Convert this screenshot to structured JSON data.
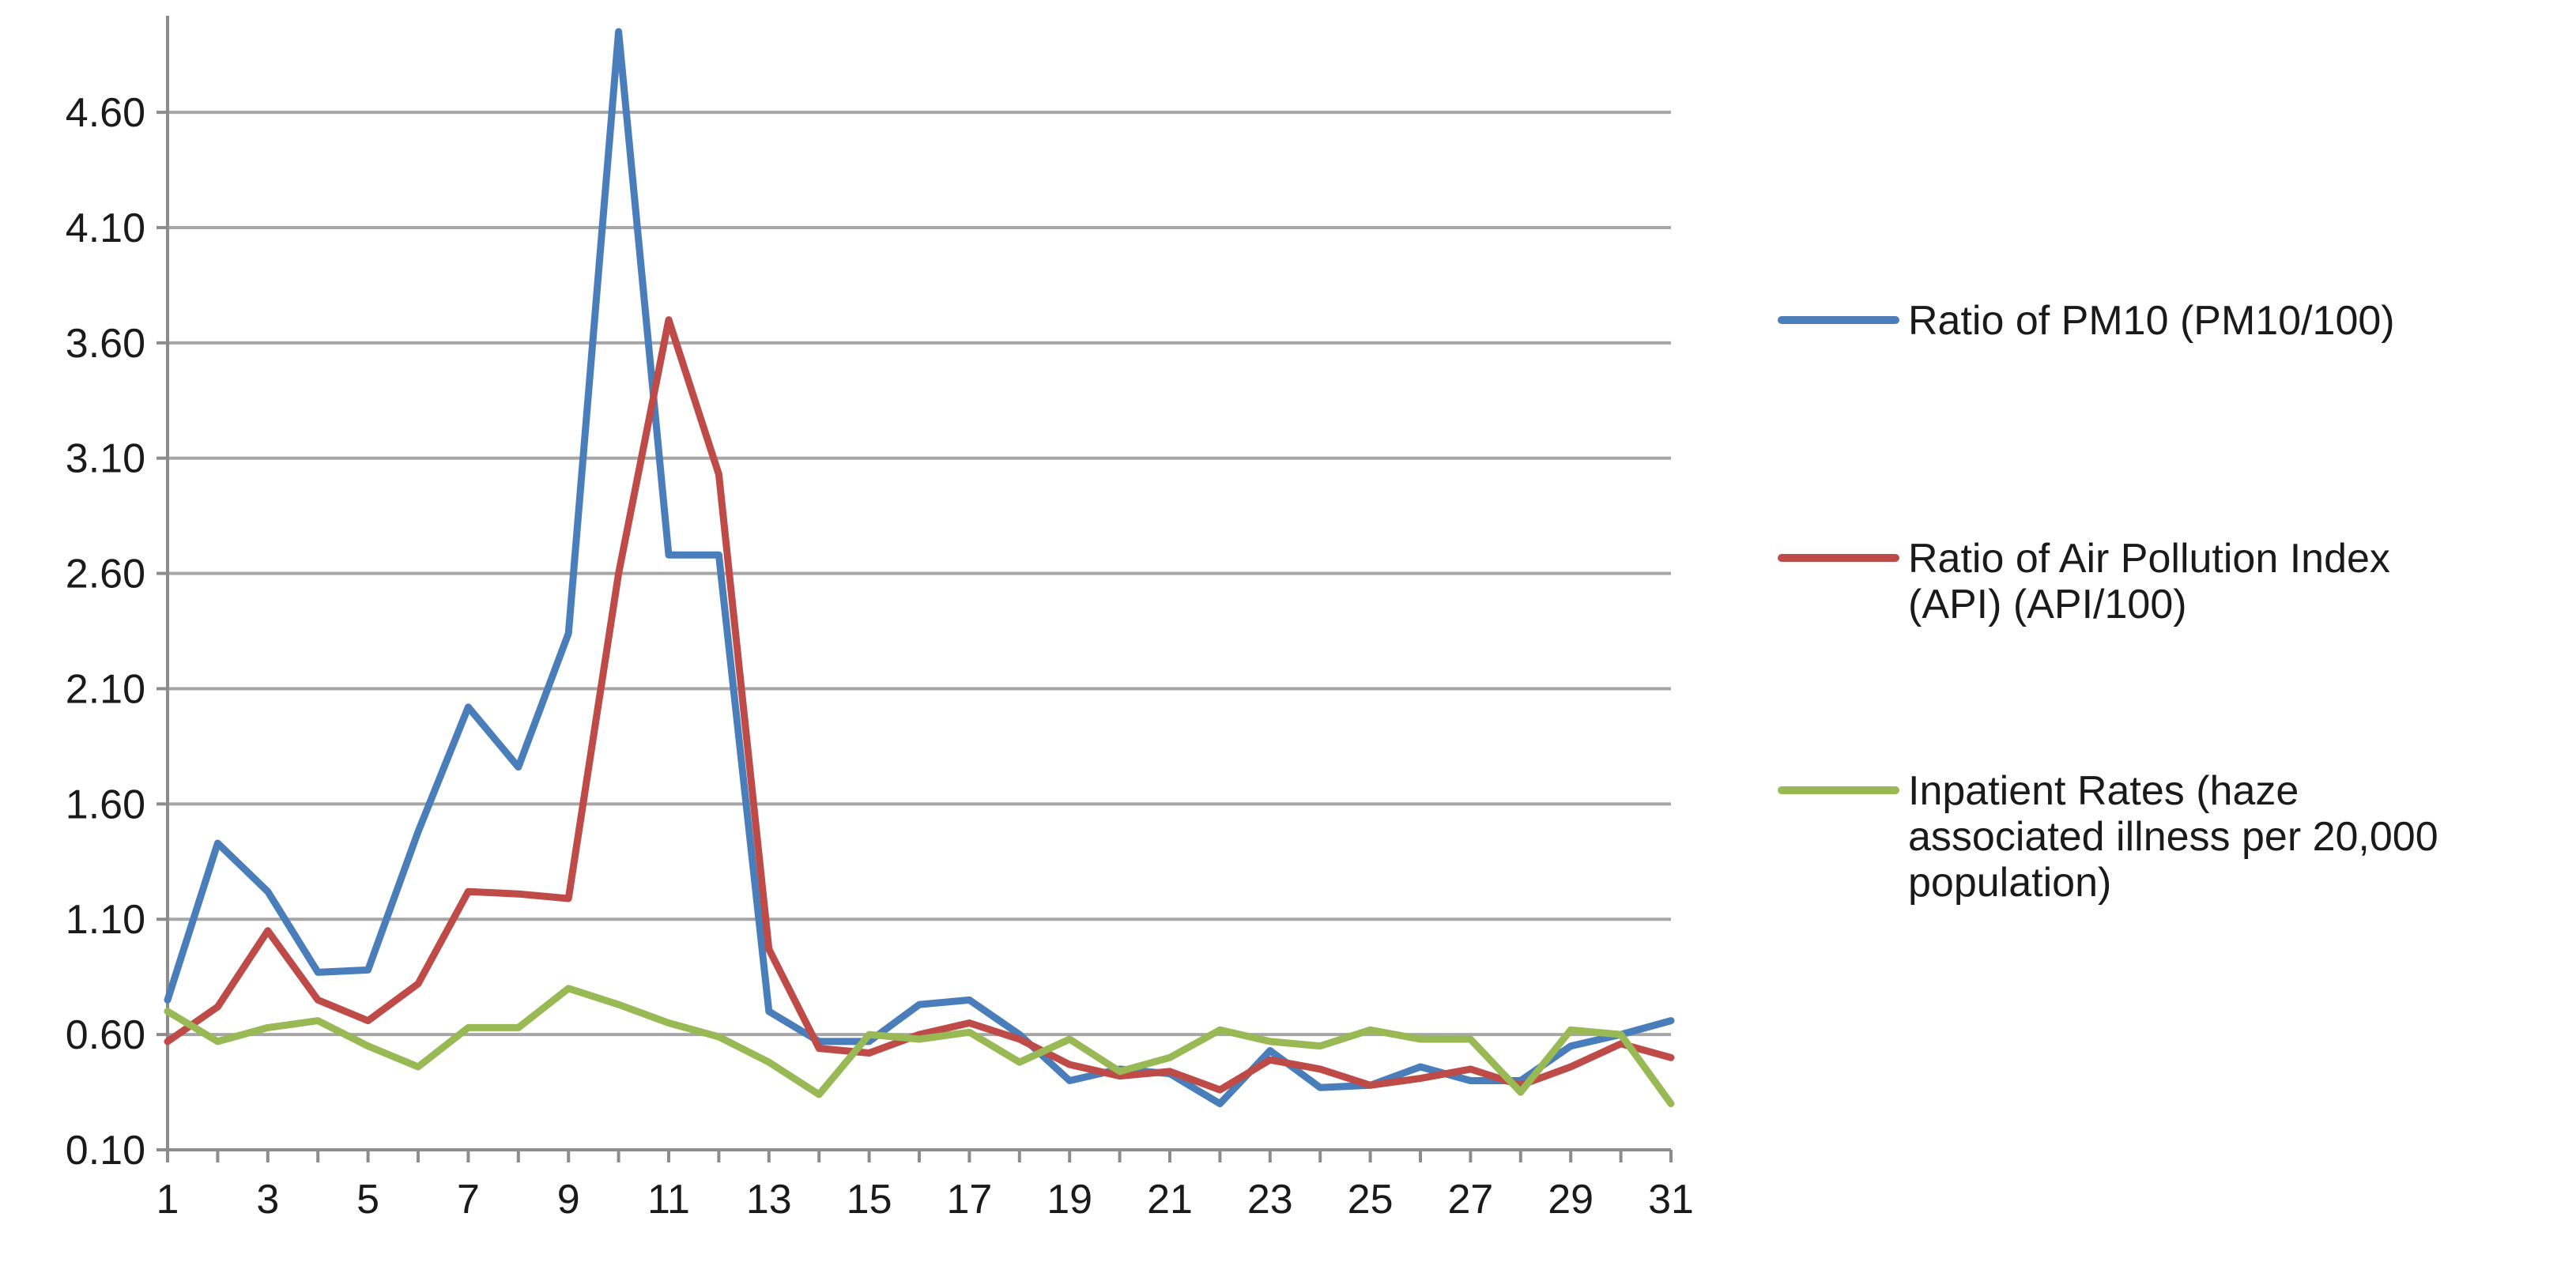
{
  "chart_data": {
    "type": "line",
    "title": "",
    "xlabel": "",
    "ylabel": "",
    "x": [
      1,
      2,
      3,
      4,
      5,
      6,
      7,
      8,
      9,
      10,
      11,
      12,
      13,
      14,
      15,
      16,
      17,
      18,
      19,
      20,
      21,
      22,
      23,
      24,
      25,
      26,
      27,
      28,
      29,
      30,
      31
    ],
    "x_tick_labels": [
      "1",
      "3",
      "5",
      "7",
      "9",
      "11",
      "13",
      "15",
      "17",
      "19",
      "21",
      "23",
      "25",
      "27",
      "29",
      "31"
    ],
    "y_tick_labels": [
      "0.10",
      "0.60",
      "1.10",
      "1.60",
      "2.10",
      "2.60",
      "3.10",
      "3.60",
      "4.10",
      "4.60"
    ],
    "ylim": [
      0.1,
      4.95
    ],
    "xlim": [
      1,
      31
    ],
    "grid": "horizontal",
    "legend_position": "right",
    "series": [
      {
        "name": "Ratio of PM10 (PM10/100)",
        "name_lines": [
          "Ratio of PM10 (PM10/100)"
        ],
        "color": "#4a7ebb",
        "values": [
          0.75,
          1.43,
          1.22,
          0.87,
          0.88,
          1.48,
          2.02,
          1.76,
          2.34,
          4.95,
          2.68,
          2.68,
          0.7,
          0.57,
          0.57,
          0.73,
          0.75,
          0.6,
          0.4,
          0.45,
          0.43,
          0.3,
          0.53,
          0.37,
          0.38,
          0.46,
          0.4,
          0.4,
          0.55,
          0.6,
          0.66
        ]
      },
      {
        "name": "Ratio of Air Pollution Index (API) (API/100)",
        "name_lines": [
          "Ratio of Air Pollution Index",
          "(API) (API/100)"
        ],
        "color": "#be4b48",
        "values": [
          0.57,
          0.72,
          1.05,
          0.75,
          0.66,
          0.82,
          1.22,
          1.21,
          1.19,
          2.6,
          3.7,
          3.03,
          0.97,
          0.54,
          0.52,
          0.6,
          0.65,
          0.58,
          0.47,
          0.42,
          0.44,
          0.36,
          0.49,
          0.45,
          0.38,
          0.41,
          0.45,
          0.38,
          0.46,
          0.56,
          0.5
        ]
      },
      {
        "name": "Inpatient Rates (haze associated illness per 20,000 population)",
        "name_lines": [
          "Inpatient Rates (haze",
          "associated illness per 20,000",
          "population)"
        ],
        "color": "#98b954",
        "values": [
          0.7,
          0.57,
          0.63,
          0.66,
          0.55,
          0.46,
          0.63,
          0.63,
          0.8,
          0.73,
          0.65,
          0.59,
          0.48,
          0.34,
          0.6,
          0.58,
          0.61,
          0.48,
          0.58,
          0.44,
          0.5,
          0.62,
          0.57,
          0.55,
          0.62,
          0.58,
          0.58,
          0.35,
          0.62,
          0.6,
          0.3
        ]
      }
    ]
  }
}
